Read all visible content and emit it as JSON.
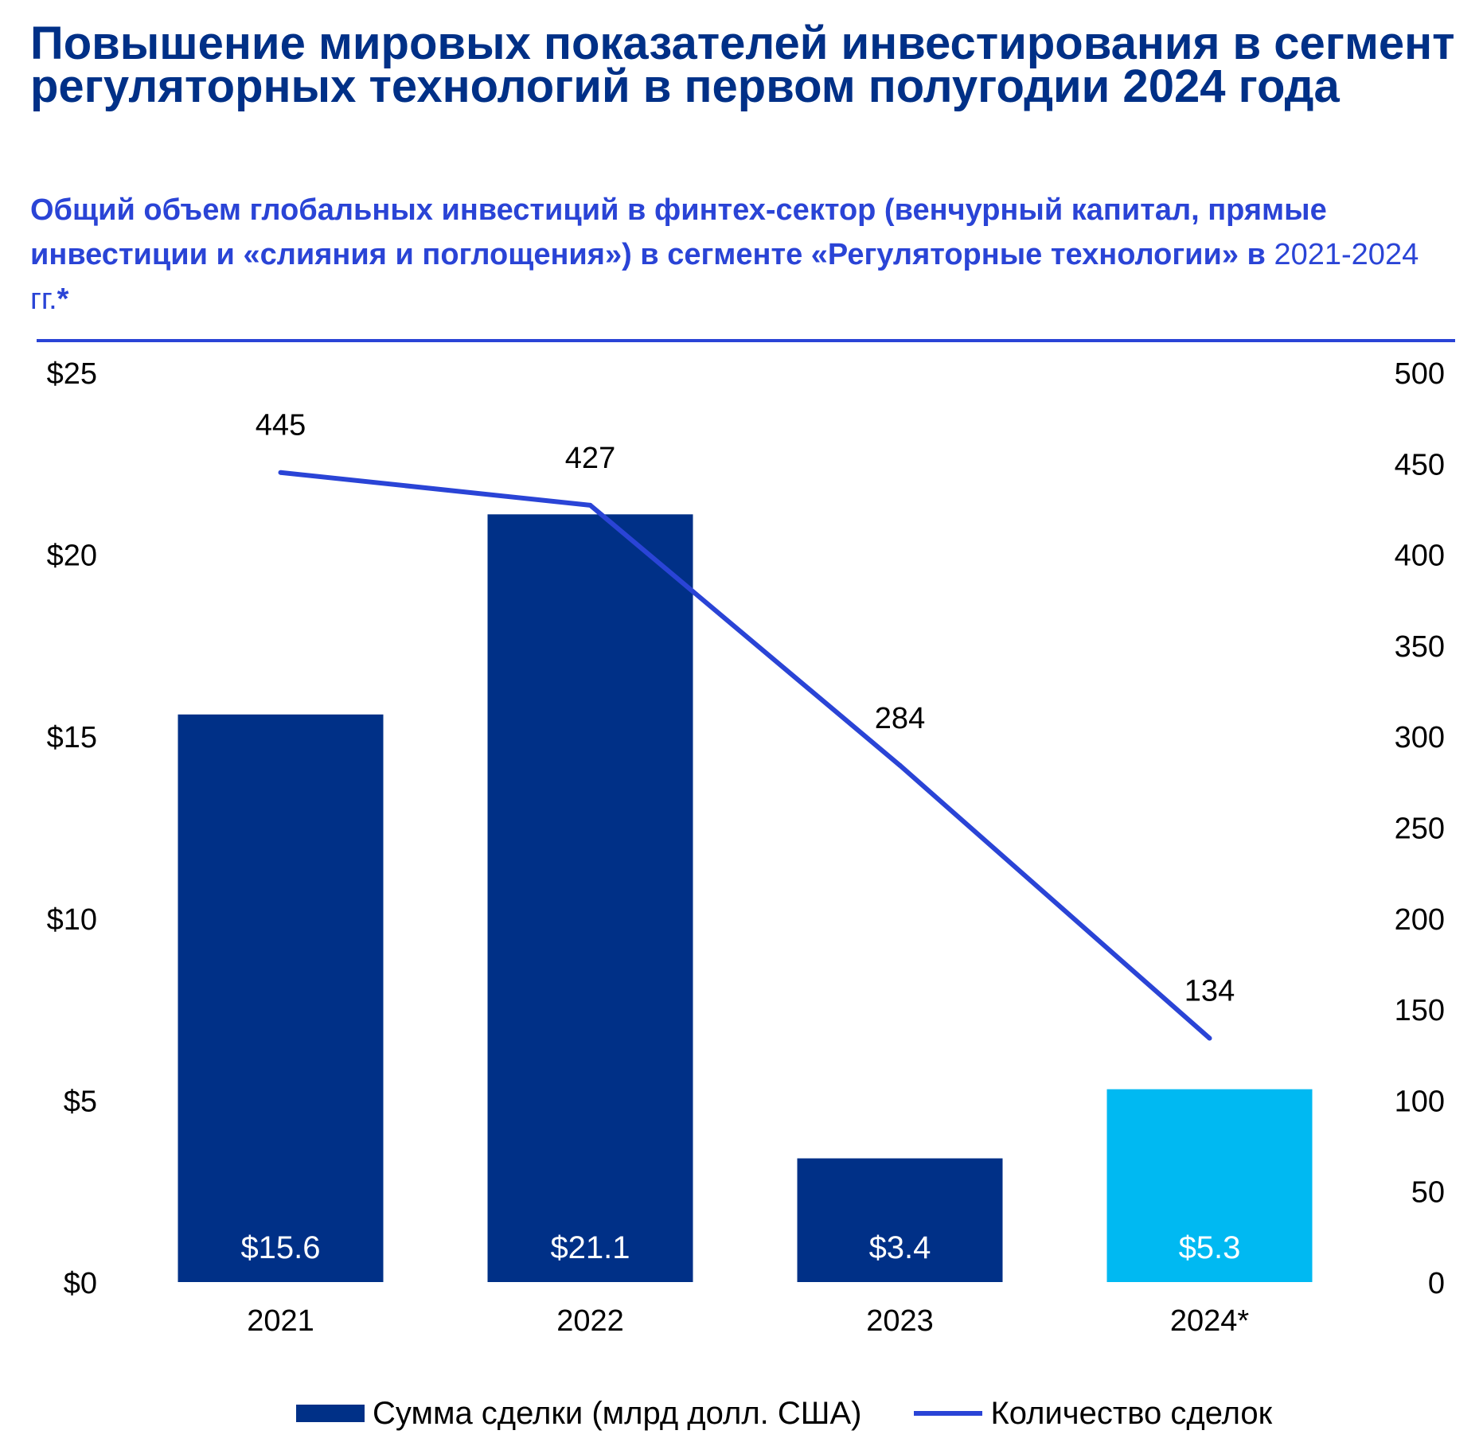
{
  "header": {
    "title": "Повышение мировых показателей инвестирования в сегмент регуляторных технологий в первом полугодии 2024 года",
    "subtitle_bold": "Общий объем глобальных инвестиций в финтех-сектор (венчурный капитал, прямые инвестиции и «слияния и поглощения») в сегменте «Регуляторные технологии» в",
    "subtitle_years": "2021-2024 гг.",
    "subtitle_end": "*"
  },
  "colors": {
    "title": "#003087",
    "accent": "#2a44d6",
    "bar": "#003087",
    "bar_highlight": "#00b9f2",
    "line": "#2a44d6"
  },
  "chart_data": {
    "type": "bar",
    "categories": [
      "2021",
      "2022",
      "2023",
      "2024*"
    ],
    "series": [
      {
        "name": "Сумма сделки (млрд долл. США)",
        "type": "bar",
        "axis": "left",
        "values": [
          15.6,
          21.1,
          3.4,
          5.3
        ],
        "labels": [
          "$15.6",
          "$21.1",
          "$3.4",
          "$5.3"
        ],
        "highlight_index": 3
      },
      {
        "name": "Количество сделок",
        "type": "line",
        "axis": "right",
        "values": [
          445,
          427,
          284,
          134
        ],
        "labels": [
          "445",
          "427",
          "284",
          "134"
        ]
      }
    ],
    "y_left": {
      "lim": [
        0,
        25
      ],
      "ticks": [
        0,
        5,
        10,
        15,
        20,
        25
      ],
      "tick_labels": [
        "$0",
        "$5",
        "$10",
        "$15",
        "$20",
        "$25"
      ]
    },
    "y_right": {
      "lim": [
        0,
        500
      ],
      "ticks": [
        0,
        50,
        100,
        150,
        200,
        250,
        300,
        350,
        400,
        450,
        500
      ],
      "tick_labels": [
        "0",
        "50",
        "100",
        "150",
        "200",
        "250",
        "300",
        "350",
        "400",
        "450",
        "500"
      ]
    },
    "grid": false,
    "legend": "bottom"
  }
}
